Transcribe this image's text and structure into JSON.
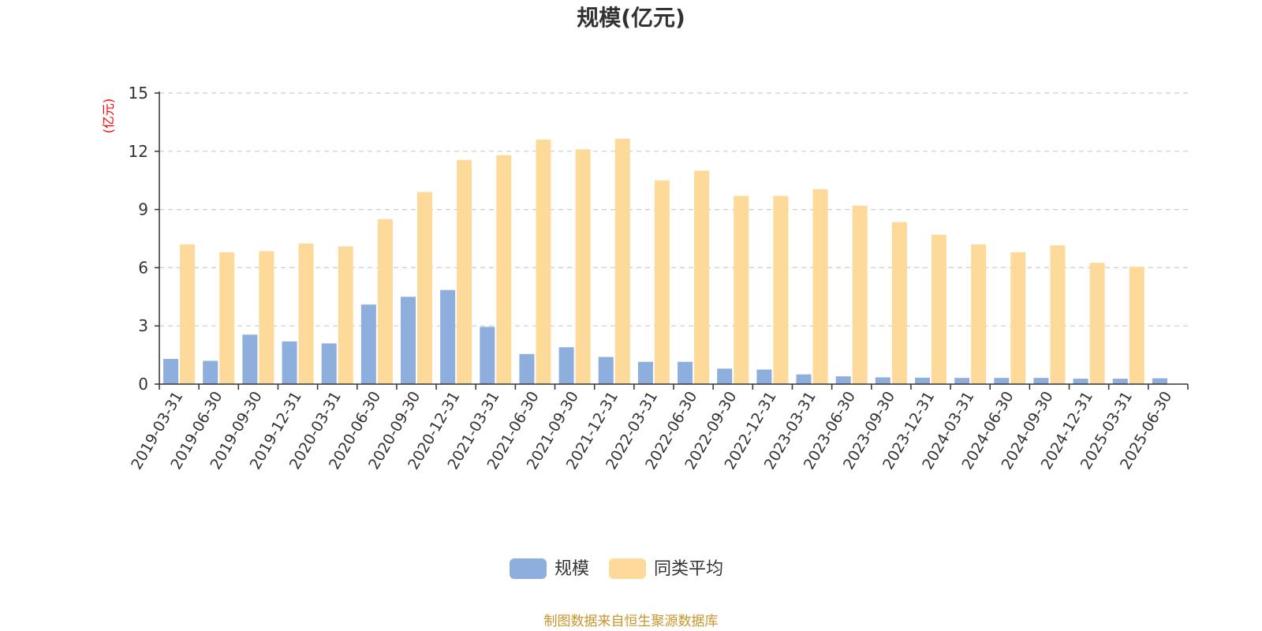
{
  "chart_data": {
    "type": "bar",
    "title": "规模(亿元)",
    "ylabel": "(亿元)",
    "ylim": [
      0,
      15
    ],
    "yticks": [
      0,
      3,
      6,
      9,
      12,
      15
    ],
    "grid": true,
    "legend_position": "bottom-center",
    "categories": [
      "2019-03-31",
      "2019-06-30",
      "2019-09-30",
      "2019-12-31",
      "2020-03-31",
      "2020-06-30",
      "2020-09-30",
      "2020-12-31",
      "2021-03-31",
      "2021-06-30",
      "2021-09-30",
      "2021-12-31",
      "2022-03-31",
      "2022-06-30",
      "2022-09-30",
      "2022-12-31",
      "2023-03-31",
      "2023-06-30",
      "2023-09-30",
      "2023-12-31",
      "2024-03-31",
      "2024-06-30",
      "2024-09-30",
      "2024-12-31",
      "2025-03-31",
      "2025-06-30"
    ],
    "series": [
      {
        "name": "规模",
        "color": "#8eaedd",
        "values": [
          1.3,
          1.2,
          2.55,
          2.2,
          2.1,
          4.1,
          4.5,
          4.85,
          2.95,
          1.55,
          1.9,
          1.4,
          1.15,
          1.15,
          0.8,
          0.75,
          0.5,
          0.4,
          0.35,
          0.33,
          0.32,
          0.32,
          0.32,
          0.28,
          0.28,
          0.3
        ]
      },
      {
        "name": "同类平均",
        "color": "#fdd99a",
        "values": [
          7.2,
          6.8,
          6.85,
          7.25,
          7.1,
          8.5,
          9.9,
          11.55,
          11.8,
          12.6,
          12.1,
          12.65,
          10.5,
          11.0,
          9.7,
          9.7,
          10.05,
          9.2,
          8.35,
          7.7,
          7.2,
          6.8,
          7.15,
          6.25,
          6.05,
          null
        ]
      }
    ]
  },
  "colors": {
    "title": "#333333",
    "unit_label": "#ff0000",
    "axis": "#333333",
    "grid": "#cccccc",
    "source": "#c9952b"
  },
  "footer": {
    "source": "制图数据来自恒生聚源数据库"
  }
}
